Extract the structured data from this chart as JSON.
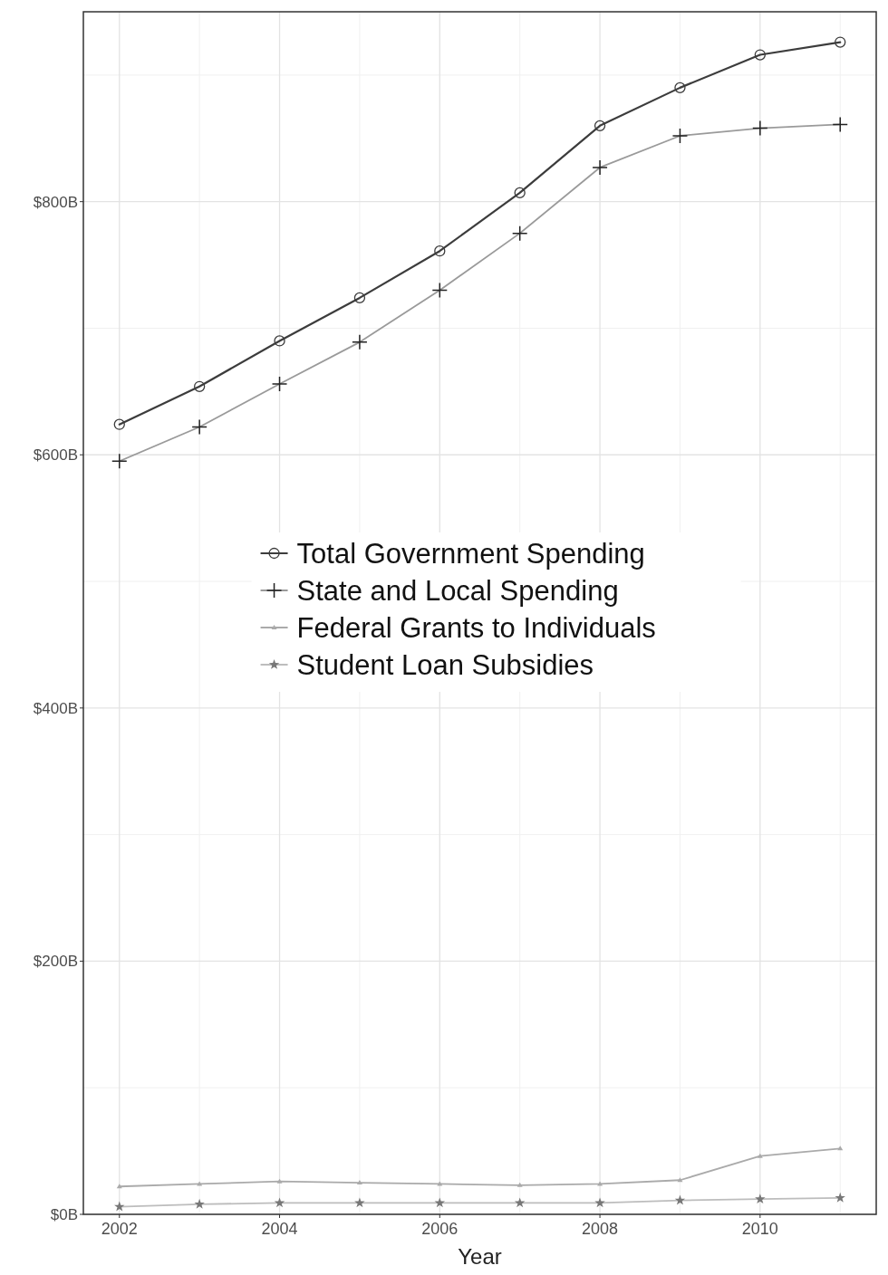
{
  "chart_data": {
    "type": "line",
    "xlabel": "Year",
    "x": [
      2002,
      2003,
      2004,
      2005,
      2006,
      2007,
      2008,
      2009,
      2010,
      2011
    ],
    "xlim": [
      2001.55,
      2011.45
    ],
    "xticks": [
      2002,
      2004,
      2006,
      2008,
      2010
    ],
    "ylim": [
      0,
      950
    ],
    "yticks": [
      {
        "value": 0,
        "label": "$0B"
      },
      {
        "value": 200,
        "label": "$200B"
      },
      {
        "value": 400,
        "label": "$400B"
      },
      {
        "value": 600,
        "label": "$600B"
      },
      {
        "value": 800,
        "label": "$800B"
      }
    ],
    "grid": true,
    "legend": "center",
    "series": [
      {
        "name": "Total Government Spending",
        "color": "#3c3c3c",
        "marker": "circle",
        "values": [
          624,
          654,
          690,
          724,
          761,
          807,
          860,
          890,
          916,
          926
        ]
      },
      {
        "name": "State and Local Spending",
        "color": "#9a9a9a",
        "marker": "cross",
        "values": [
          595,
          622,
          656,
          689,
          730,
          775,
          827,
          852,
          858,
          861
        ]
      },
      {
        "name": "Federal Grants to Individuals",
        "color": "#aaaaaa",
        "marker": "triangle",
        "values": [
          22,
          24,
          26,
          25,
          24,
          23,
          24,
          27,
          46,
          52
        ]
      },
      {
        "name": "Student Loan Subsidies",
        "color": "#bdbdbd",
        "marker": "star",
        "values": [
          6,
          8,
          9,
          9,
          9,
          9,
          9,
          11,
          12,
          13
        ]
      }
    ]
  }
}
